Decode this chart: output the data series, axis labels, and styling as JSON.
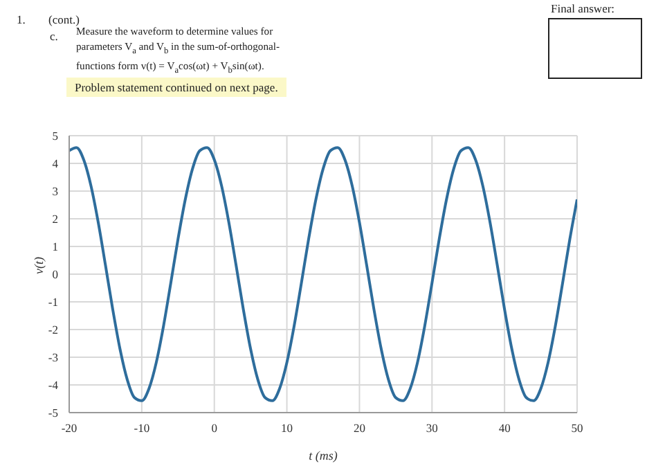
{
  "chart_data": {
    "type": "line",
    "xlabel": "t (ms)",
    "ylabel": "v(t)",
    "annotations": [
      "1.",
      "(cont.)",
      "c.",
      "Measure the waveform to determine values for parameters V$_{a}$ and V$_{b}$ in the sum-of-orthogonal-functions form v(t) = V$_{a}$cos(ωt) + V$_{b}$sin(ωt).",
      "Problem statement continued on next page.",
      "Final answer:"
    ],
    "x": [
      -20,
      -19,
      -18,
      -17,
      -16,
      -15,
      -14,
      -13,
      -12,
      -11,
      -10,
      -9,
      -8,
      -7,
      -6,
      -5,
      -4,
      -3,
      -2,
      -1,
      0,
      1,
      2,
      3,
      4,
      5,
      6,
      7,
      8,
      9,
      10,
      11,
      12,
      13,
      14,
      15,
      16,
      17,
      18,
      19,
      20,
      21,
      22,
      23,
      24,
      25,
      26,
      27,
      28,
      29,
      30,
      31,
      32,
      33,
      34,
      35,
      36,
      37,
      38,
      39,
      40,
      41,
      42,
      43,
      44,
      45,
      46,
      47,
      48,
      49,
      50
    ],
    "series": [
      {
        "color": "#2e6d9c",
        "values": [
          4.46,
          4.57,
          4.13,
          3.19,
          1.87,
          0.32,
          -1.27,
          -2.7,
          -3.81,
          -4.46,
          -4.57,
          -4.13,
          -3.19,
          -1.87,
          -0.32,
          1.27,
          2.7,
          3.81,
          4.46,
          4.57,
          4.13,
          3.19,
          1.87,
          0.32,
          -1.27,
          -2.7,
          -3.81,
          -4.46,
          -4.57,
          -4.13,
          -3.19,
          -1.87,
          -0.32,
          1.27,
          2.7,
          3.81,
          4.46,
          4.57,
          4.13,
          3.19,
          1.87,
          0.32,
          -1.27,
          -2.7,
          -3.81,
          -4.46,
          -4.57,
          -4.13,
          -3.19,
          -1.87,
          -0.32,
          1.27,
          2.7,
          3.81,
          4.46,
          4.57,
          4.13,
          3.19,
          1.87,
          0.32,
          -1.27,
          -2.7,
          -3.81,
          -4.46,
          -4.57,
          -4.13,
          -3.19,
          -1.87,
          -0.32,
          1.27,
          2.7
        ]
      }
    ],
    "xlim": [
      -20,
      50
    ],
    "xticks": [
      -20,
      -10,
      0,
      10,
      20,
      30,
      40,
      50
    ],
    "ylim": [
      -5,
      5
    ],
    "yticks": [
      -5,
      -4,
      -3,
      -2,
      -1,
      0,
      1,
      2,
      3,
      4,
      5
    ],
    "grid": true,
    "marker": "none",
    "line_style": "solid"
  }
}
